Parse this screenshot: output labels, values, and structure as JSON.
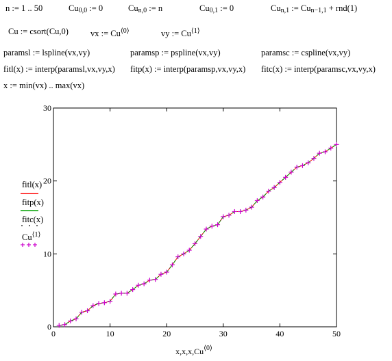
{
  "worksheet": {
    "row1": {
      "range_def": "n := 1 .. 50",
      "cu00": {
        "base": "Cu",
        "sub": "0,0",
        "rhs": " := 0"
      },
      "cun0": {
        "base": "Cu",
        "sub": "n,0",
        "rhs": " := n"
      },
      "cu01": {
        "base": "Cu",
        "sub": "0,1",
        "rhs": " := 0"
      },
      "cun1": {
        "base": "Cu",
        "sub": "n,1",
        "mid": " := Cu",
        "sub2": "n−1,1",
        "rhs": " + rnd(1)"
      }
    },
    "row2": {
      "csort": "Cu := csort(Cu,0)",
      "vx": {
        "lhs": "vx := Cu",
        "sup": "⟨0⟩"
      },
      "vy": {
        "lhs": "vy := Cu",
        "sup": "⟨1⟩"
      }
    },
    "row3": {
      "paramsl": "paramsl := lspline(vx,vy)",
      "paramsp": "paramsp := pspline(vx,vy)",
      "paramsc": "paramsc := cspline(vx,vy)"
    },
    "row4": {
      "fitl": "fitl(x) := interp(paramsl,vx,vy,x)",
      "fitp": "fitp(x) := interp(paramsp,vx,vy,x)",
      "fitc": "fitc(x) := interp(paramsc,vx,vy,x)"
    },
    "row5": {
      "xrange": "x := min(vx) .. max(vx)"
    }
  },
  "legend": {
    "fitl": "fitl(x)",
    "fitp": "fitp(x)",
    "fitc": "fitc(x)",
    "cu": "Cu",
    "cu_sup": "⟨1⟩"
  },
  "colors": {
    "fitl": "#ff0000",
    "fitp": "#00a000",
    "fitc": "#000000",
    "cu": "#cc00cc"
  },
  "chart_data": {
    "type": "scatter",
    "xlabel": "x,x,x,Cu",
    "xlabel_sup": "⟨0⟩",
    "xlim": [
      0,
      50
    ],
    "ylim": [
      0,
      30
    ],
    "xticks": [
      "0",
      "10",
      "20",
      "30",
      "40",
      "50"
    ],
    "yticks": [
      "0",
      "10",
      "20",
      "30"
    ],
    "grid": false,
    "series": [
      {
        "name": "Cu⟨1⟩",
        "x": [
          1,
          2,
          3,
          4,
          5,
          6,
          7,
          8,
          9,
          10,
          11,
          12,
          13,
          14,
          15,
          16,
          17,
          18,
          19,
          20,
          21,
          22,
          23,
          24,
          25,
          26,
          27,
          28,
          29,
          30,
          31,
          32,
          33,
          34,
          35,
          36,
          37,
          38,
          39,
          40,
          41,
          42,
          43,
          44,
          45,
          46,
          47,
          48,
          49,
          50
        ],
        "y": [
          0.2,
          0.3,
          0.8,
          1.1,
          2.0,
          2.2,
          2.9,
          3.2,
          3.3,
          3.5,
          4.5,
          4.6,
          4.6,
          5.1,
          5.7,
          5.9,
          6.4,
          6.5,
          7.2,
          7.5,
          8.5,
          9.6,
          10.0,
          10.5,
          11.4,
          12.4,
          13.4,
          13.8,
          14.0,
          15.1,
          15.3,
          15.8,
          15.8,
          16.0,
          16.4,
          17.3,
          17.8,
          18.6,
          19.1,
          19.8,
          20.5,
          21.2,
          21.9,
          22.1,
          22.5,
          23.1,
          23.8,
          24.0,
          24.5,
          25.0
        ]
      }
    ]
  }
}
